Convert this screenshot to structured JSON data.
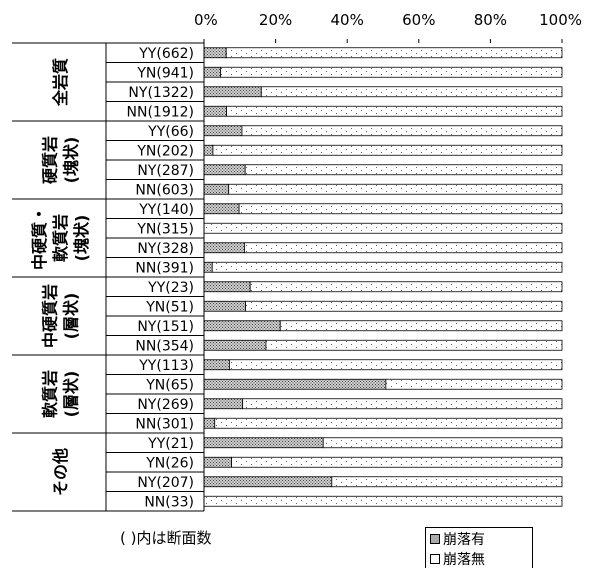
{
  "chart_data": {
    "type": "bar",
    "stacked": true,
    "orientation": "horizontal",
    "x_tick_labels": [
      "0%",
      "20%",
      "40%",
      "60%",
      "80%",
      "100%"
    ],
    "xlim": [
      0,
      100
    ],
    "grid": false,
    "legend_position": "bottom-right",
    "note": "( )内は断面数",
    "groups": [
      {
        "name": "全岩質",
        "lines": [
          "全岩質"
        ],
        "categories": [
          "YY(662)",
          "YN(941)",
          "NY(1322)",
          "NN(1912)"
        ]
      },
      {
        "name": "硬質岩(塊状)",
        "lines": [
          "硬質岩",
          "(塊状)"
        ],
        "categories": [
          "YY(66)",
          "YN(202)",
          "NY(287)",
          "NN(603)"
        ]
      },
      {
        "name": "中硬質・軟質岩(塊状)",
        "lines": [
          "中硬質・",
          "軟質岩",
          "(塊状)"
        ],
        "categories": [
          "YY(140)",
          "YN(315)",
          "NY(328)",
          "NN(391)"
        ]
      },
      {
        "name": "中硬質岩(層状)",
        "lines": [
          "中硬質岩",
          "(層状)"
        ],
        "categories": [
          "YY(23)",
          "YN(51)",
          "NY(151)",
          "NN(354)"
        ]
      },
      {
        "name": "軟質岩(層状)",
        "lines": [
          "軟質岩",
          "(層状)"
        ],
        "categories": [
          "YY(113)",
          "YN(65)",
          "NY(269)",
          "NN(301)"
        ]
      },
      {
        "name": "その他",
        "lines": [
          "その他"
        ],
        "categories": [
          "YY(21)",
          "YN(26)",
          "NY(207)",
          "NN(33)"
        ]
      }
    ],
    "series": [
      {
        "name": "崩落有",
        "pattern": "crosshatch",
        "values": [
          6.2,
          4.6,
          16,
          6.3,
          10.6,
          2.5,
          11.5,
          6.9,
          9.8,
          0,
          11.3,
          2.3,
          12.9,
          11.6,
          21.3,
          17.3,
          7.1,
          50.8,
          10.8,
          3.0,
          33.3,
          7.7,
          35.7,
          0
        ]
      },
      {
        "name": "崩落無",
        "pattern": "dots",
        "values": [
          93.8,
          95.4,
          84,
          93.7,
          89.4,
          97.5,
          88.5,
          93.1,
          90.2,
          100,
          88.7,
          97.7,
          87.1,
          88.4,
          78.7,
          82.7,
          92.9,
          49.2,
          89.2,
          97.0,
          66.7,
          92.3,
          64.3,
          100
        ]
      }
    ],
    "colors": {
      "bar_fill": "#bbbbbb",
      "dot_color": "#555555",
      "axis": "#000000"
    }
  }
}
